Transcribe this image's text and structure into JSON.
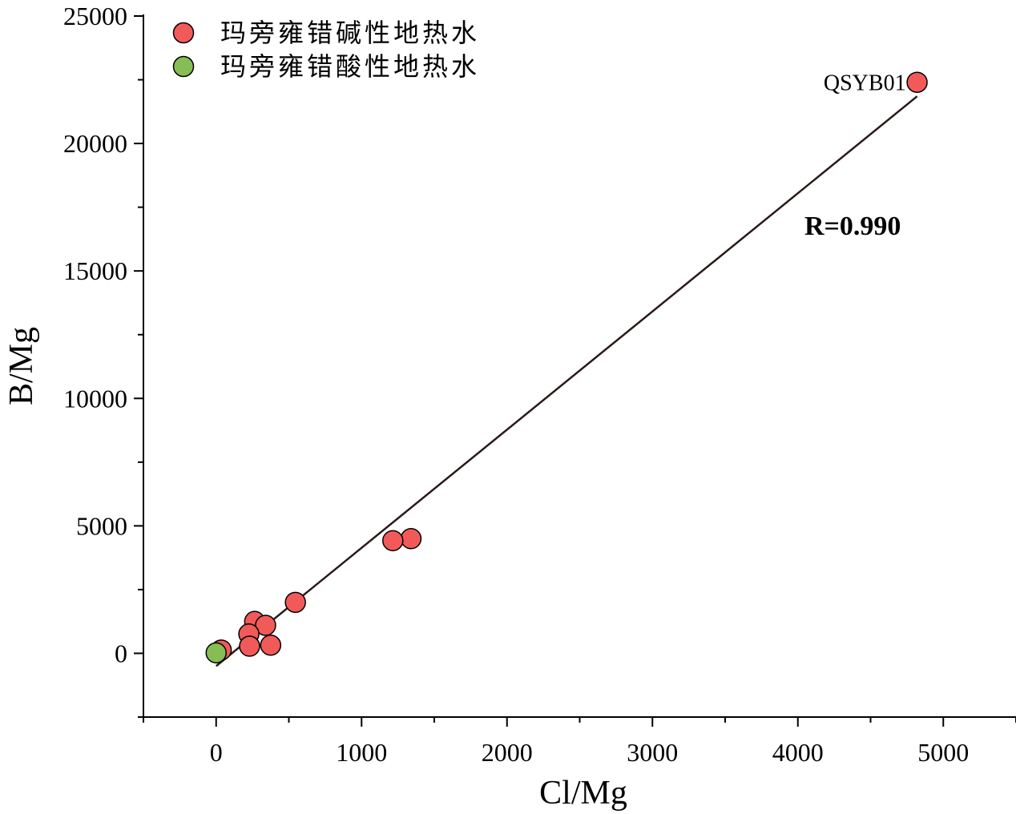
{
  "chart_data": {
    "type": "scatter",
    "xlabel": "Cl/Mg",
    "ylabel": "B/Mg",
    "xlim": [
      -500,
      5500
    ],
    "ylim": [
      -2500,
      25000
    ],
    "x_ticks": [
      0,
      1000,
      2000,
      3000,
      4000,
      5000
    ],
    "y_ticks": [
      0,
      5000,
      10000,
      15000,
      20000,
      25000
    ],
    "legend_position": "top-left",
    "series": [
      {
        "name": "玛旁雍错碱性地热水",
        "color": "#f25a5a",
        "points": [
          {
            "x": 4820,
            "y": 22400
          },
          {
            "x": 1340,
            "y": 4500
          },
          {
            "x": 1215,
            "y": 4420
          },
          {
            "x": 545,
            "y": 2000
          },
          {
            "x": 265,
            "y": 1250
          },
          {
            "x": 340,
            "y": 1100
          },
          {
            "x": 225,
            "y": 760
          },
          {
            "x": 230,
            "y": 280
          },
          {
            "x": 375,
            "y": 320
          },
          {
            "x": 35,
            "y": 130
          }
        ]
      },
      {
        "name": "玛旁雍错酸性地热水",
        "color": "#86bd55",
        "points": [
          {
            "x": 0,
            "y": 20
          }
        ]
      }
    ],
    "fit_line": {
      "x": [
        0,
        4820
      ],
      "y": [
        -500,
        21850
      ],
      "color": "#2a1a1a"
    },
    "annotations": [
      {
        "text": "QSYB01",
        "x": 4820,
        "y": 22400
      },
      {
        "text": "R=0.990"
      }
    ]
  }
}
